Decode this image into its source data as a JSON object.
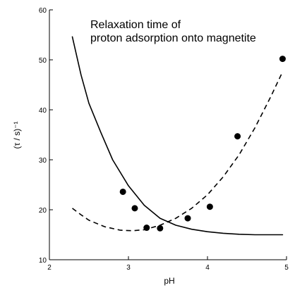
{
  "chart_data": {
    "type": "scatter",
    "title_lines": [
      "Relaxation time of",
      "proton adsorption onto magnetite"
    ],
    "xlabel": "pH",
    "ylabel": "(τ / s)⁻¹",
    "xlim": [
      2,
      5
    ],
    "ylim": [
      10,
      60
    ],
    "x_ticks": [
      2,
      3,
      4,
      5
    ],
    "x_tick_labels": [
      "2",
      "3",
      "4",
      "5"
    ],
    "y_ticks": [
      10,
      20,
      30,
      40,
      50,
      60
    ],
    "y_tick_labels": [
      "10",
      "20",
      "30",
      "40",
      "50",
      "60"
    ],
    "grid": false,
    "legend": "none",
    "series": [
      {
        "kind": "points",
        "style": "filled-circle",
        "x": [
          2.93,
          3.08,
          3.23,
          3.4,
          3.75,
          4.03,
          4.38,
          4.95
        ],
        "y": [
          23.6,
          20.3,
          16.4,
          16.3,
          18.3,
          20.6,
          34.7,
          50.2
        ]
      },
      {
        "kind": "line",
        "style": "solid",
        "x": [
          2.29,
          2.4,
          2.5,
          2.65,
          2.8,
          3.0,
          3.2,
          3.4,
          3.6,
          3.8,
          4.0,
          4.2,
          4.4,
          4.6,
          4.8,
          4.95
        ],
        "y": [
          54.6,
          47.0,
          41.3,
          35.5,
          30.0,
          24.8,
          20.9,
          18.3,
          16.9,
          16.1,
          15.6,
          15.3,
          15.1,
          15.0,
          15.0,
          15.0
        ]
      },
      {
        "kind": "line",
        "style": "dashed",
        "x": [
          2.29,
          2.4,
          2.5,
          2.7,
          2.9,
          3.05,
          3.2,
          3.4,
          3.6,
          3.8,
          4.0,
          4.2,
          4.4,
          4.6,
          4.8,
          4.95
        ],
        "y": [
          20.3,
          19.0,
          17.9,
          16.6,
          15.9,
          15.8,
          16.0,
          16.9,
          18.3,
          20.3,
          23.0,
          26.6,
          31.0,
          36.4,
          42.6,
          47.6
        ]
      }
    ],
    "colors": {
      "axis": "#000000",
      "series": "#000000",
      "background": "#ffffff"
    }
  }
}
